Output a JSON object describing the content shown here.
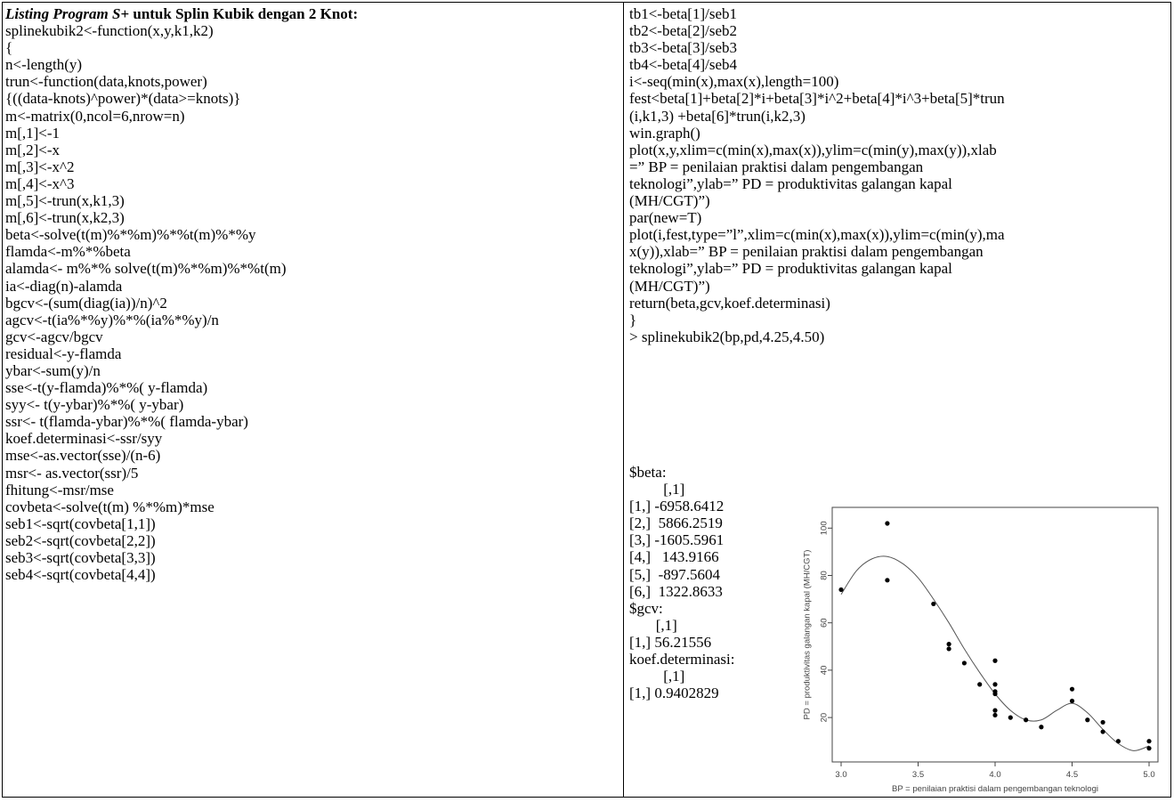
{
  "left": {
    "title_italic": "Listing Program S+",
    "title_rest": " untuk Splin Kubik dengan 2 Knot:",
    "lines": [
      "splinekubik2<-function(x,y,k1,k2)",
      "{",
      "n<-length(y)",
      "trun<-function(data,knots,power)",
      "{((data-knots)^power)*(data>=knots)}",
      "m<-matrix(0,ncol=6,nrow=n)",
      "m[,1]<-1",
      "m[,2]<-x",
      "m[,3]<-x^2",
      "m[,4]<-x^3",
      "m[,5]<-trun(x,k1,3)",
      "m[,6]<-trun(x,k2,3)",
      "beta<-solve(t(m)%*%m)%*%t(m)%*%y",
      "flamda<-m%*%beta",
      "alamda<- m%*% solve(t(m)%*%m)%*%t(m)",
      "ia<-diag(n)-alamda",
      "bgcv<-(sum(diag(ia))/n)^2",
      "agcv<-t(ia%*%y)%*%(ia%*%y)/n",
      "gcv<-agcv/bgcv",
      "residual<-y-flamda",
      "ybar<-sum(y)/n",
      "sse<-t(y-flamda)%*%( y-flamda)",
      "syy<- t(y-ybar)%*%( y-ybar)",
      "ssr<- t(flamda-ybar)%*%( flamda-ybar)",
      "koef.determinasi<-ssr/syy",
      "mse<-as.vector(sse)/(n-6)",
      "msr<- as.vector(ssr)/5",
      "fhitung<-msr/mse",
      "covbeta<-solve(t(m) %*%m)*mse",
      "seb1<-sqrt(covbeta[1,1])",
      "seb2<-sqrt(covbeta[2,2])",
      "seb3<-sqrt(covbeta[3,3])",
      "seb4<-sqrt(covbeta[4,4])"
    ]
  },
  "right": {
    "lines": [
      "tb1<-beta[1]/seb1",
      "tb2<-beta[2]/seb2",
      "tb3<-beta[3]/seb3",
      "tb4<-beta[4]/seb4",
      "i<-seq(min(x),max(x),length=100)",
      "fest<beta[1]+beta[2]*i+beta[3]*i^2+beta[4]*i^3+beta[5]*trun",
      "(i,k1,3) +beta[6]*trun(i,k2,3)",
      "win.graph()",
      "plot(x,y,xlim=c(min(x),max(x)),ylim=c(min(y),max(y)),xlab",
      "=” BP = penilaian praktisi dalam pengembangan",
      "teknologi”,ylab=” PD = produktivitas galangan kapal",
      "(MH/CGT)”)",
      "par(new=T)",
      "plot(i,fest,type=”l”,xlim=c(min(x),max(x)),ylim=c(min(y),ma",
      "x(y)),xlab=” BP = penilaian praktisi dalam pengembangan",
      "teknologi”,ylab=” PD = produktivitas galangan kapal",
      "(MH/CGT)”)",
      "return(beta,gcv,koef.determinasi)",
      "}",
      "> splinekubik2(bp,pd,4.25,4.50)"
    ],
    "output_lines": [
      "$beta:",
      "         [,1]",
      "[1,] -6958.6412",
      "[2,]  5866.2519",
      "[3,] -1605.5961",
      "[4,]   143.9166",
      "[5,]  -897.5604",
      "[6,]  1322.8633",
      "$gcv:",
      "       [,1]",
      "[1,] 56.21556",
      "koef.determinasi:",
      "         [,1]",
      "[1,] 0.9402829"
    ]
  },
  "chart_data": {
    "type": "scatter",
    "title": "",
    "xlabel": "BP = penilaian praktisi dalam pengembangan teknologi",
    "ylabel": "PD = produktivitas galangan kapal (MH/CGT)",
    "xlim": [
      3.0,
      5.0
    ],
    "ylim": [
      5,
      105
    ],
    "xticks": [
      "3.0",
      "3.5",
      "4.0",
      "4.5",
      "5.0"
    ],
    "yticks": [
      "20",
      "40",
      "60",
      "80",
      "100"
    ],
    "xtick_values": [
      3.0,
      3.5,
      4.0,
      4.5,
      5.0
    ],
    "ytick_values": [
      20,
      40,
      60,
      80,
      100
    ],
    "points": [
      [
        3.0,
        74
      ],
      [
        3.3,
        102
      ],
      [
        3.3,
        78
      ],
      [
        3.6,
        68
      ],
      [
        3.7,
        51
      ],
      [
        3.7,
        49
      ],
      [
        3.8,
        43
      ],
      [
        3.9,
        34
      ],
      [
        4.0,
        44
      ],
      [
        4.0,
        34
      ],
      [
        4.0,
        31
      ],
      [
        4.0,
        30
      ],
      [
        4.0,
        23
      ],
      [
        4.0,
        21
      ],
      [
        4.1,
        20
      ],
      [
        4.2,
        19
      ],
      [
        4.3,
        16
      ],
      [
        4.5,
        32
      ],
      [
        4.5,
        27
      ],
      [
        4.6,
        19
      ],
      [
        4.7,
        18
      ],
      [
        4.7,
        14
      ],
      [
        4.8,
        10
      ],
      [
        5.0,
        10
      ],
      [
        5.0,
        7
      ]
    ],
    "curve": [
      [
        3.0,
        72
      ],
      [
        3.1,
        82
      ],
      [
        3.2,
        87
      ],
      [
        3.3,
        88
      ],
      [
        3.4,
        85
      ],
      [
        3.5,
        79
      ],
      [
        3.6,
        70
      ],
      [
        3.7,
        60
      ],
      [
        3.8,
        49
      ],
      [
        3.9,
        39
      ],
      [
        4.0,
        30
      ],
      [
        4.1,
        23
      ],
      [
        4.2,
        19
      ],
      [
        4.3,
        19
      ],
      [
        4.4,
        23
      ],
      [
        4.5,
        26
      ],
      [
        4.6,
        22
      ],
      [
        4.7,
        15
      ],
      [
        4.8,
        9
      ],
      [
        4.9,
        6
      ],
      [
        5.0,
        8
      ]
    ]
  }
}
